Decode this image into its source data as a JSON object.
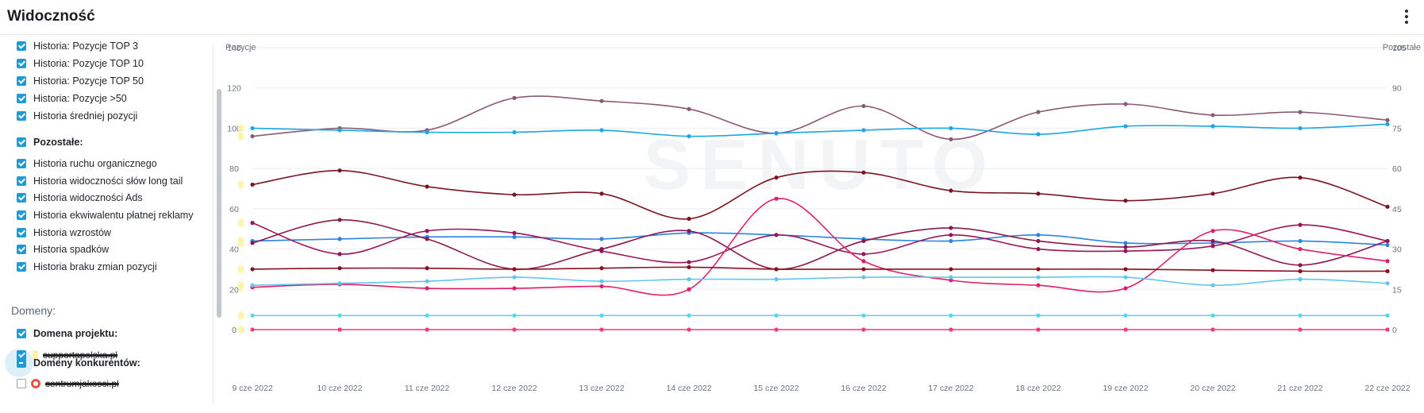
{
  "header": {
    "title": "Widoczność"
  },
  "sidebar": {
    "history_items": [
      {
        "label": "Historia: Pozycje TOP 3",
        "checked": true
      },
      {
        "label": "Historia: Pozycje TOP 10",
        "checked": true
      },
      {
        "label": "Historia: Pozycje TOP 50",
        "checked": true
      },
      {
        "label": "Historia: Pozycje >50",
        "checked": true
      },
      {
        "label": "Historia średniej pozycji",
        "checked": true
      }
    ],
    "other_group_label": "Pozostałe:",
    "other_items": [
      {
        "label": "Historia ruchu organicznego",
        "checked": true
      },
      {
        "label": "Historia widoczności słów long tail",
        "checked": true
      },
      {
        "label": "Historia widoczności Ads",
        "checked": true
      },
      {
        "label": "Historia ekwiwalentu płatnej reklamy",
        "checked": true
      },
      {
        "label": "Historia wzrostów",
        "checked": true
      },
      {
        "label": "Historia spadków",
        "checked": true
      },
      {
        "label": "Historia braku zmian pozycji",
        "checked": true
      }
    ],
    "domains_heading": "Domeny:",
    "project_domain_label": "Domena projektu:",
    "project_domain": "supportapolska.pl",
    "competitors_label": "Domeny konkurentów:",
    "competitor_domain": "centrumjakosci.pl"
  },
  "chart_data": {
    "type": "line",
    "y_left_label": "Pozycje",
    "y_right_label": "Pozostałe",
    "x": [
      "9 cze 2022",
      "10 cze 2022",
      "11 cze 2022",
      "12 cze 2022",
      "13 cze 2022",
      "14 cze 2022",
      "15 cze 2022",
      "16 cze 2022",
      "17 cze 2022",
      "18 cze 2022",
      "19 cze 2022",
      "20 cze 2022",
      "21 cze 2022",
      "22 cze 2022"
    ],
    "ylim_left": [
      0,
      140
    ],
    "yticks_left": [
      0,
      20,
      40,
      60,
      80,
      100,
      120,
      140
    ],
    "ylim_right": [
      0,
      105
    ],
    "yticks_right": [
      0,
      15,
      30,
      45,
      60,
      75,
      90,
      105
    ],
    "grid": true,
    "series": [
      {
        "color": "#8a5a72",
        "values": [
          96,
          100,
          99,
          115,
          113.5,
          109.5,
          97.5,
          111,
          94.5,
          108,
          112,
          106.5,
          108,
          104
        ]
      },
      {
        "color": "#1aa6e8",
        "values": [
          100,
          99,
          98,
          98,
          99,
          96,
          97.5,
          99,
          100,
          97,
          101,
          101,
          100,
          102
        ]
      },
      {
        "color": "#7a1422",
        "values": [
          72,
          79,
          71,
          67,
          67.5,
          55,
          75.5,
          78,
          69,
          67.5,
          64,
          67.5,
          75.5,
          61
        ]
      },
      {
        "color": "#2b84e0",
        "values": [
          44,
          45,
          46,
          46,
          45,
          48,
          47,
          45,
          44,
          47,
          43,
          43,
          44,
          42
        ]
      },
      {
        "color": "#9b1458",
        "values": [
          53,
          37.5,
          49,
          48,
          39,
          33.5,
          47,
          37.5,
          47,
          40,
          39,
          41.5,
          52,
          44
        ]
      },
      {
        "color": "#8a1a4a",
        "values": [
          43,
          54.5,
          45,
          30,
          40,
          49,
          30,
          44,
          50.5,
          44,
          41,
          44,
          32,
          44
        ]
      },
      {
        "color": "#e01e6a",
        "values": [
          21,
          22.5,
          20.5,
          20.5,
          21.5,
          20,
          65,
          34,
          24.5,
          22,
          20.5,
          49,
          40,
          34
        ]
      },
      {
        "color": "#8b1020",
        "values": [
          30,
          30.5,
          30.5,
          30,
          30.5,
          31,
          30,
          30,
          30,
          30,
          30,
          29.5,
          29,
          29
        ]
      },
      {
        "color": "#62c6ec",
        "values": [
          22,
          23,
          24,
          26,
          24,
          25,
          25,
          26,
          26,
          26,
          26,
          22,
          25,
          23
        ]
      },
      {
        "color": "#54d6f2",
        "values": [
          7,
          7,
          7,
          7,
          7,
          7,
          7,
          7,
          7,
          7,
          7,
          7,
          7,
          7
        ]
      },
      {
        "color": "#f03a78",
        "values": [
          0,
          0,
          0,
          0,
          0,
          0,
          0,
          0,
          0,
          0,
          0,
          0,
          0,
          0
        ]
      }
    ],
    "watermark": "SENUTO"
  }
}
